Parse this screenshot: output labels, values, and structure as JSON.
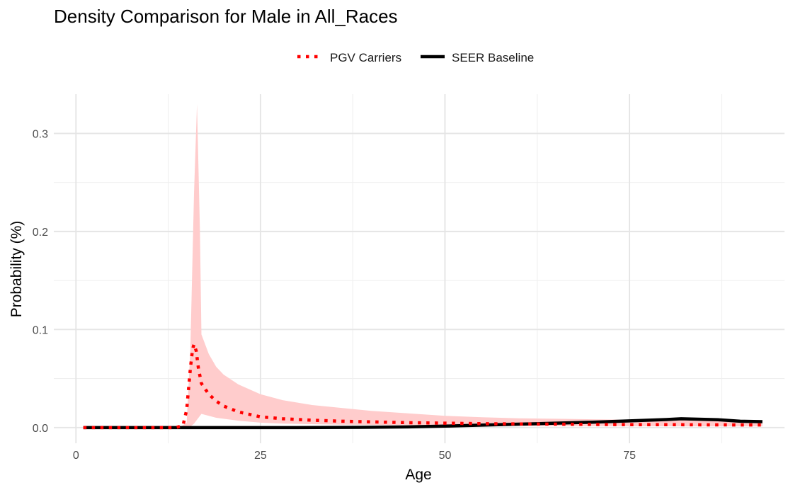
{
  "chart_data": {
    "type": "line",
    "title": "Density Comparison for Male in All_Races",
    "xlabel": "Age",
    "ylabel": "Probability (%)",
    "xlim": [
      -3,
      96
    ],
    "ylim": [
      -0.016,
      0.34
    ],
    "x_ticks": [
      0,
      25,
      50,
      75
    ],
    "x_tick_labels": [
      "0",
      "25",
      "50",
      "75"
    ],
    "y_ticks": [
      0.0,
      0.1,
      0.2,
      0.3
    ],
    "y_tick_labels": [
      "0.0",
      "0.1",
      "0.2",
      "0.3"
    ],
    "grid": true,
    "legend_position": "top",
    "colors": {
      "pgv_line": "#ff0000",
      "pgv_band": "#ffcccc",
      "seer_line": "#000000"
    },
    "series": [
      {
        "name": "PGV Carriers",
        "style": "dotted",
        "x": [
          1,
          3,
          5,
          8,
          10,
          12,
          13.5,
          14.5,
          15,
          15.5,
          15.8,
          16,
          16.3,
          16.6,
          17,
          18,
          19,
          20,
          22,
          25,
          28,
          32,
          36,
          40,
          45,
          50,
          55,
          60,
          65,
          70,
          75,
          80,
          85,
          90,
          93
        ],
        "y": [
          0,
          0,
          0,
          0,
          0,
          0,
          0,
          0.002,
          0.018,
          0.06,
          0.08,
          0.085,
          0.078,
          0.06,
          0.045,
          0.034,
          0.027,
          0.022,
          0.016,
          0.011,
          0.009,
          0.0075,
          0.0065,
          0.0058,
          0.005,
          0.0045,
          0.004,
          0.0037,
          0.0035,
          0.0032,
          0.003,
          0.003,
          0.0028,
          0.0027,
          0.0027
        ]
      },
      {
        "name": "SEER Baseline",
        "style": "solid",
        "x": [
          1,
          10,
          20,
          30,
          40,
          45,
          50,
          55,
          60,
          65,
          70,
          75,
          80,
          82,
          87,
          90,
          93
        ],
        "y": [
          0,
          0,
          0,
          0,
          0.0003,
          0.0007,
          0.0015,
          0.0025,
          0.0035,
          0.0045,
          0.0055,
          0.0068,
          0.0082,
          0.009,
          0.008,
          0.0065,
          0.006
        ]
      }
    ],
    "band": {
      "series": "PGV Carriers",
      "x": [
        1,
        14,
        15,
        15.5,
        16,
        16.4,
        16.8,
        17,
        18,
        19,
        20,
        22,
        25,
        28,
        32,
        36,
        40,
        45,
        50,
        55,
        60,
        65,
        70,
        75,
        80,
        85,
        90,
        93
      ],
      "lower": [
        0,
        0,
        0,
        0.001,
        0.004,
        0.008,
        0.012,
        0.014,
        0.012,
        0.01,
        0.009,
        0.007,
        0.005,
        0.004,
        0.0035,
        0.003,
        0.0028,
        0.0025,
        0.0022,
        0.002,
        0.0018,
        0.0016,
        0.0015,
        0.0014,
        0.0013,
        0.0012,
        0.0012,
        0.0012
      ],
      "upper": [
        0,
        0,
        0.005,
        0.08,
        0.24,
        0.33,
        0.2,
        0.095,
        0.075,
        0.062,
        0.054,
        0.044,
        0.034,
        0.028,
        0.023,
        0.02,
        0.017,
        0.0145,
        0.012,
        0.0105,
        0.0095,
        0.009,
        0.0085,
        0.008,
        0.0078,
        0.0075,
        0.0072,
        0.007
      ]
    }
  }
}
